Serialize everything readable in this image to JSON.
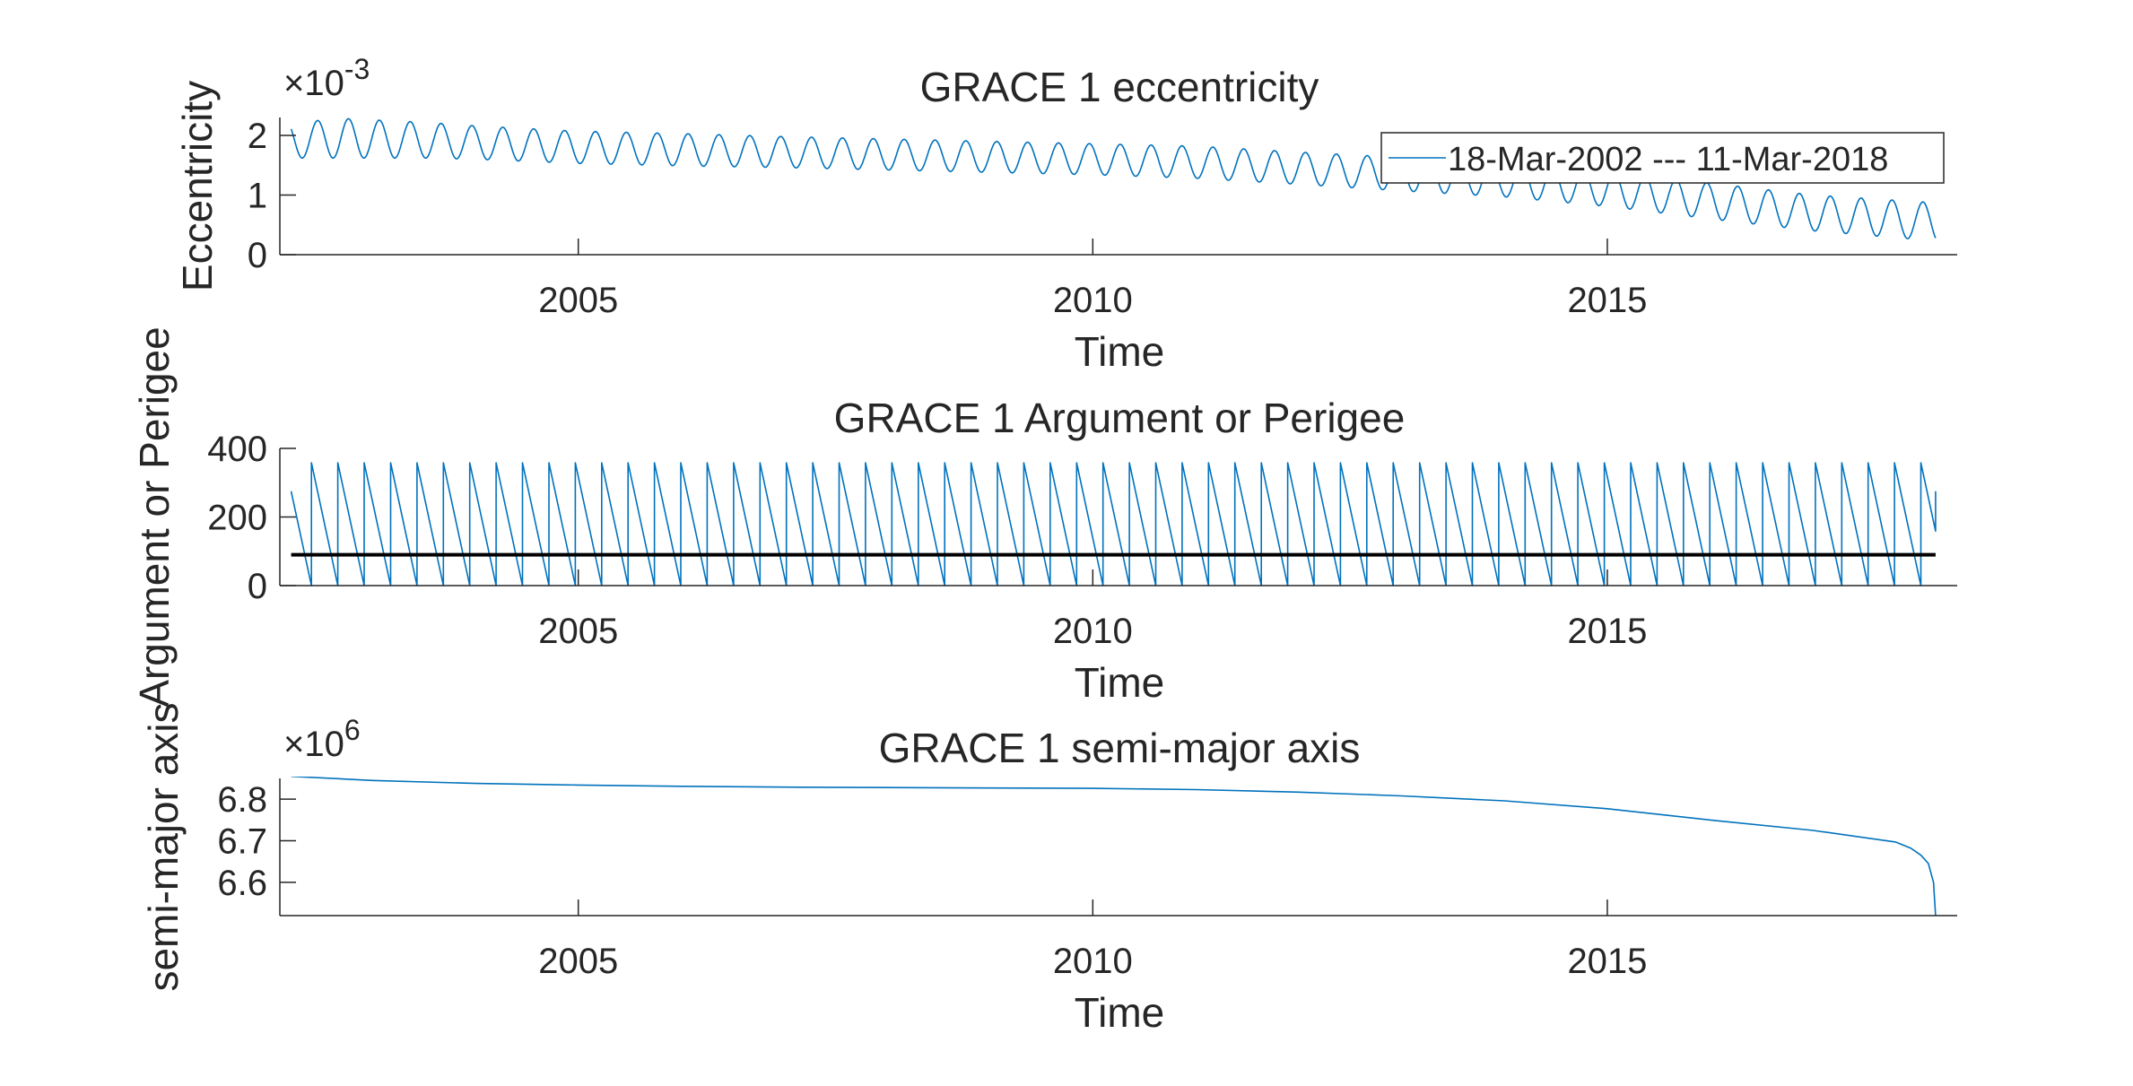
{
  "chart_data": [
    {
      "type": "line",
      "title": "GRACE 1 eccentricity",
      "xlabel": "Time",
      "ylabel": "Eccentricity",
      "y_exponent_label": "×10",
      "y_exponent_power": "-3",
      "xlim": [
        2002.1,
        2018.4
      ],
      "ylim": [
        0,
        0.0023
      ],
      "xticks": [
        {
          "value": 2005,
          "label": "2005"
        },
        {
          "value": 2010,
          "label": "2010"
        },
        {
          "value": 2015,
          "label": "2015"
        }
      ],
      "yticks": [
        {
          "value": 0,
          "label": "0"
        },
        {
          "value": 0.001,
          "label": "1"
        },
        {
          "value": 0.002,
          "label": "2"
        }
      ],
      "legend": {
        "entries": [
          "18-Mar-2002 --- 11-Mar-2018"
        ],
        "placement": "top-right"
      },
      "series": [
        {
          "name": "18-Mar-2002 --- 11-Mar-2018",
          "color": "#0072BD",
          "x": [
            2002.21,
            2002.75,
            2003.5,
            2004.0,
            2005.0,
            2006.0,
            2007.0,
            2008.0,
            2009.0,
            2010.0,
            2011.0,
            2012.0,
            2013.0,
            2014.0,
            2015.0,
            2016.0,
            2017.0,
            2018.19
          ],
          "mean": [
            0.00192,
            0.00195,
            0.00192,
            0.00188,
            0.0018,
            0.00176,
            0.00172,
            0.00168,
            0.00164,
            0.0016,
            0.00155,
            0.00145,
            0.00135,
            0.00125,
            0.0011,
            0.0009,
            0.0007,
            0.00055
          ],
          "amplitude": [
            0.0003,
            0.00033,
            0.0003,
            0.00028,
            0.00027,
            0.00027,
            0.00026,
            0.00026,
            0.00026,
            0.00026,
            0.00027,
            0.00027,
            0.00028,
            0.00028,
            0.00029,
            0.0003,
            0.0003,
            0.00032
          ],
          "oscillation_period_years": 0.3
        }
      ]
    },
    {
      "type": "line",
      "title": "GRACE 1 Argument or Perigee",
      "xlabel": "Time",
      "ylabel": "Argument or Perigee",
      "xlim": [
        2002.1,
        2018.4
      ],
      "ylim": [
        0,
        400
      ],
      "xticks": [
        {
          "value": 2005,
          "label": "2005"
        },
        {
          "value": 2010,
          "label": "2010"
        },
        {
          "value": 2015,
          "label": "2015"
        }
      ],
      "yticks": [
        {
          "value": 0,
          "label": "0"
        },
        {
          "value": 200,
          "label": "200"
        },
        {
          "value": 400,
          "label": "400"
        }
      ],
      "series": [
        {
          "color": "#0072BD",
          "x_start": 2002.21,
          "x_end": 2018.19,
          "start_value": 275,
          "wrap_high": 358,
          "wrap_low": 0,
          "cycle_years": 0.2564
        },
        {
          "color": "#000000",
          "x": [
            2002.21,
            2018.19
          ],
          "values": [
            90,
            90
          ]
        }
      ]
    },
    {
      "type": "line",
      "title": "GRACE 1 semi-major axis",
      "xlabel": "Time",
      "ylabel": "semi-major axis",
      "y_exponent_label": "×10",
      "y_exponent_power": "6",
      "xlim": [
        2002.1,
        2018.4
      ],
      "ylim": [
        6520000,
        6850000
      ],
      "xticks": [
        {
          "value": 2005,
          "label": "2005"
        },
        {
          "value": 2010,
          "label": "2010"
        },
        {
          "value": 2015,
          "label": "2015"
        }
      ],
      "yticks": [
        {
          "value": 6600000,
          "label": "6.6"
        },
        {
          "value": 6700000,
          "label": "6.7"
        },
        {
          "value": 6800000,
          "label": "6.8"
        }
      ],
      "series": [
        {
          "color": "#0072BD",
          "x": [
            2002.21,
            2003.0,
            2004.0,
            2005.0,
            2006.0,
            2007.0,
            2008.0,
            2009.0,
            2010.0,
            2011.0,
            2012.0,
            2013.0,
            2014.0,
            2015.0,
            2016.0,
            2017.0,
            2017.8,
            2017.95,
            2018.05,
            2018.12,
            2018.17,
            2018.19
          ],
          "values": [
            6855000,
            6845000,
            6838000,
            6834000,
            6831000,
            6829000,
            6828000,
            6827000,
            6826000,
            6823000,
            6817000,
            6808000,
            6796000,
            6777000,
            6750000,
            6725000,
            6697000,
            6682000,
            6665000,
            6645000,
            6600000,
            6520000
          ]
        }
      ]
    }
  ]
}
